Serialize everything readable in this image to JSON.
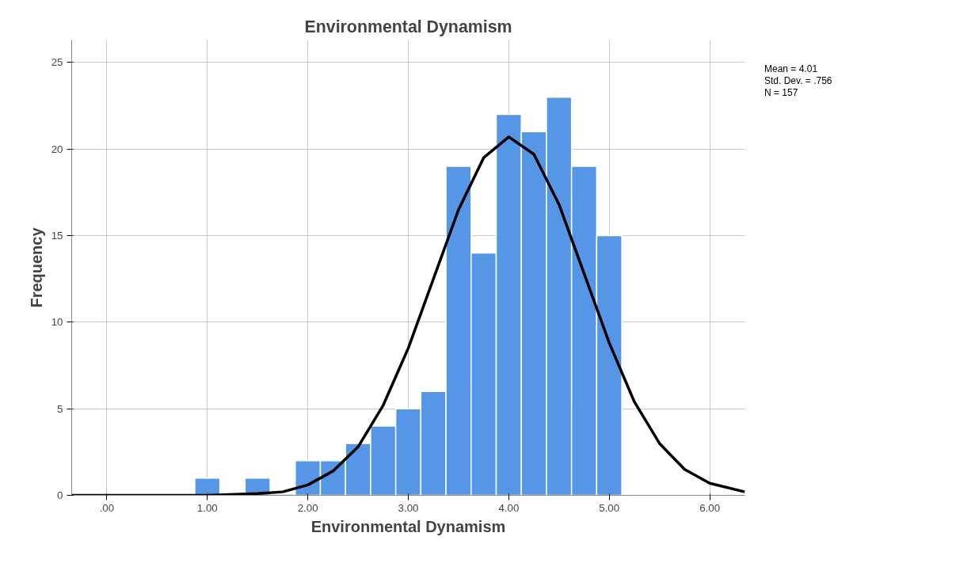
{
  "chart_data": {
    "type": "histogram",
    "title": "Environmental Dynamism",
    "xlabel": "Environmental Dynamism",
    "ylabel": "Frequency",
    "bins": [
      0.875,
      1.125,
      1.375,
      1.625,
      1.875,
      2.125,
      2.375,
      2.625,
      2.875,
      3.125,
      3.375,
      3.625,
      3.875,
      4.125,
      4.375,
      4.625,
      4.875,
      5.125
    ],
    "values": [
      1,
      0,
      1,
      0,
      2,
      2,
      3,
      4,
      5,
      6,
      19,
      14,
      22,
      21,
      23,
      19,
      15
    ],
    "color": "#5596e6",
    "series": [
      {
        "type": "line",
        "color": "#000000",
        "x": [
          -0.35,
          1.0,
          1.5,
          1.75,
          2.0,
          2.25,
          2.5,
          2.75,
          3.0,
          3.25,
          3.5,
          3.75,
          4.0,
          4.25,
          4.5,
          4.75,
          5.0,
          5.25,
          5.5,
          5.75,
          6.0,
          6.35
        ],
        "values": [
          0.0,
          0.0,
          0.1,
          0.2,
          0.6,
          1.4,
          2.8,
          5.2,
          8.5,
          12.5,
          16.5,
          19.5,
          20.7,
          19.7,
          16.8,
          12.8,
          8.8,
          5.4,
          3.0,
          1.5,
          0.7,
          0.2
        ]
      }
    ],
    "xlim": [
      -0.35,
      6.35
    ],
    "ylim": [
      0,
      26.3
    ],
    "xticks": [
      {
        "value": 0,
        "label": ".00"
      },
      {
        "value": 1,
        "label": "1.00"
      },
      {
        "value": 2,
        "label": "2.00"
      },
      {
        "value": 3,
        "label": "3.00"
      },
      {
        "value": 4,
        "label": "4.00"
      },
      {
        "value": 5,
        "label": "5.00"
      },
      {
        "value": 6,
        "label": "6.00"
      }
    ],
    "yticks": [
      0,
      5,
      10,
      15,
      20,
      25
    ],
    "grid": true,
    "annotations": [
      "Mean = 4.01",
      "Std. Dev. = .756",
      "N = 157"
    ]
  }
}
